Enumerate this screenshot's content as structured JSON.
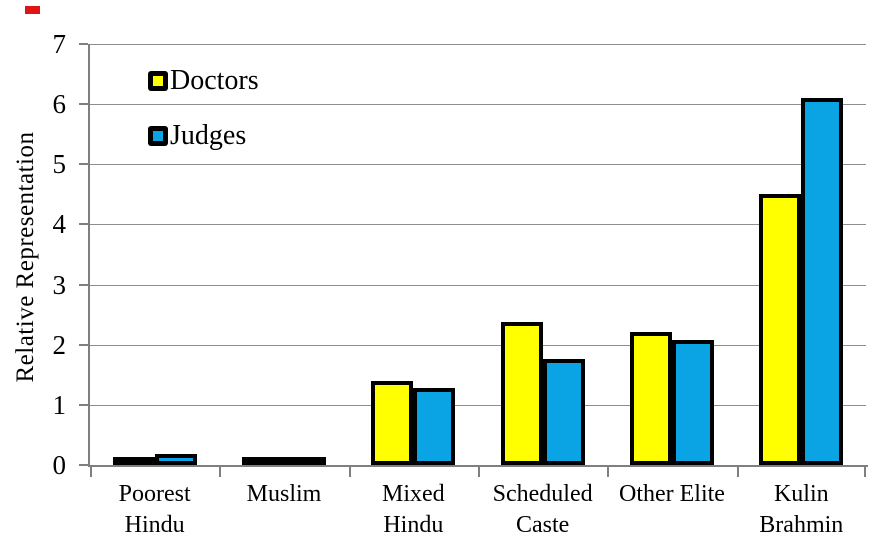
{
  "chart_data": {
    "type": "bar",
    "title": "",
    "xlabel": "",
    "ylabel": "Relative Representation",
    "ylim": [
      0,
      7
    ],
    "yticks": [
      "0",
      "1",
      "2",
      "3",
      "4",
      "5",
      "6",
      "7"
    ],
    "grid": true,
    "legend_position": "top-left-inside",
    "categories": [
      "Poorest Hindu",
      "Muslim",
      "Mixed Hindu",
      "Scheduled Caste",
      "Other Elite",
      "Kulin Brahmin"
    ],
    "category_label_lines": [
      [
        "Poorest",
        "Hindu"
      ],
      [
        "Muslim"
      ],
      [
        "Mixed",
        "Hindu"
      ],
      [
        "Scheduled",
        "Caste"
      ],
      [
        "Other Elite"
      ],
      [
        "Kulin",
        "Brahmin"
      ]
    ],
    "series": [
      {
        "name": "Doctors",
        "color": "#FFFF00",
        "values": [
          0.07,
          0.1,
          1.4,
          2.38,
          2.21,
          4.5
        ]
      },
      {
        "name": "Judges",
        "color": "#0AA3E3",
        "values": [
          0.18,
          0.13,
          1.28,
          1.76,
          2.08,
          6.1
        ]
      }
    ],
    "bar_border_color": "#000000"
  },
  "style": {
    "gridline_color": "#8E8E8E",
    "axis_color": "#7F7F7F",
    "red_mark_color": "#E01414"
  }
}
